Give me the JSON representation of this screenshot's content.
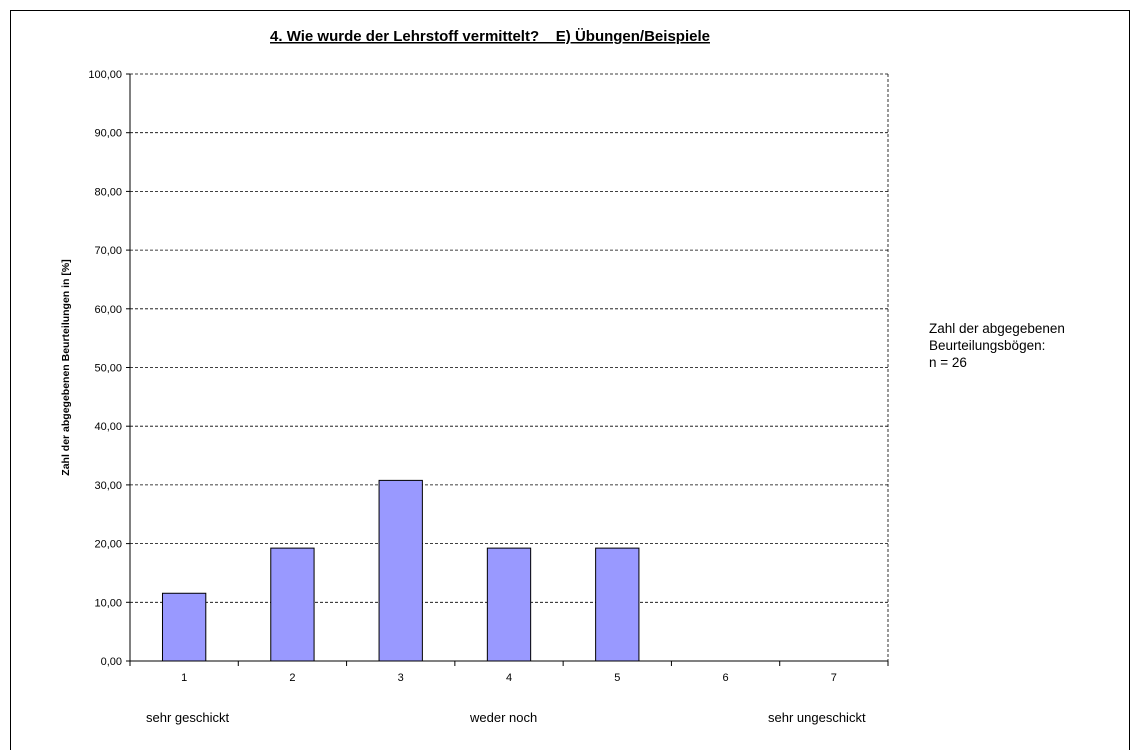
{
  "chart_data": {
    "type": "bar",
    "title": "4. Wie wurde der Lehrstoff vermittelt?    E) Übungen/Beispiele",
    "ylabel": "Zahl der abgegebenen Beurteilungen in [%]",
    "xlabel": "",
    "categories": [
      "1",
      "2",
      "3",
      "4",
      "5",
      "6",
      "7"
    ],
    "values": [
      11.54,
      19.23,
      30.77,
      19.23,
      19.23,
      0,
      0
    ],
    "ylim": [
      0,
      100
    ],
    "yticks": [
      "0,00",
      "10,00",
      "20,00",
      "30,00",
      "40,00",
      "50,00",
      "60,00",
      "70,00",
      "80,00",
      "90,00",
      "100,00"
    ],
    "grid": true,
    "bar_color": "#9999ff",
    "scale_labels": {
      "left": "sehr geschickt",
      "middle": "weder noch",
      "right": "sehr ungeschickt"
    }
  },
  "note": {
    "line1": "Zahl der abgegebenen",
    "line2": "Beurteilungsbögen:",
    "line3": "n = 26"
  }
}
